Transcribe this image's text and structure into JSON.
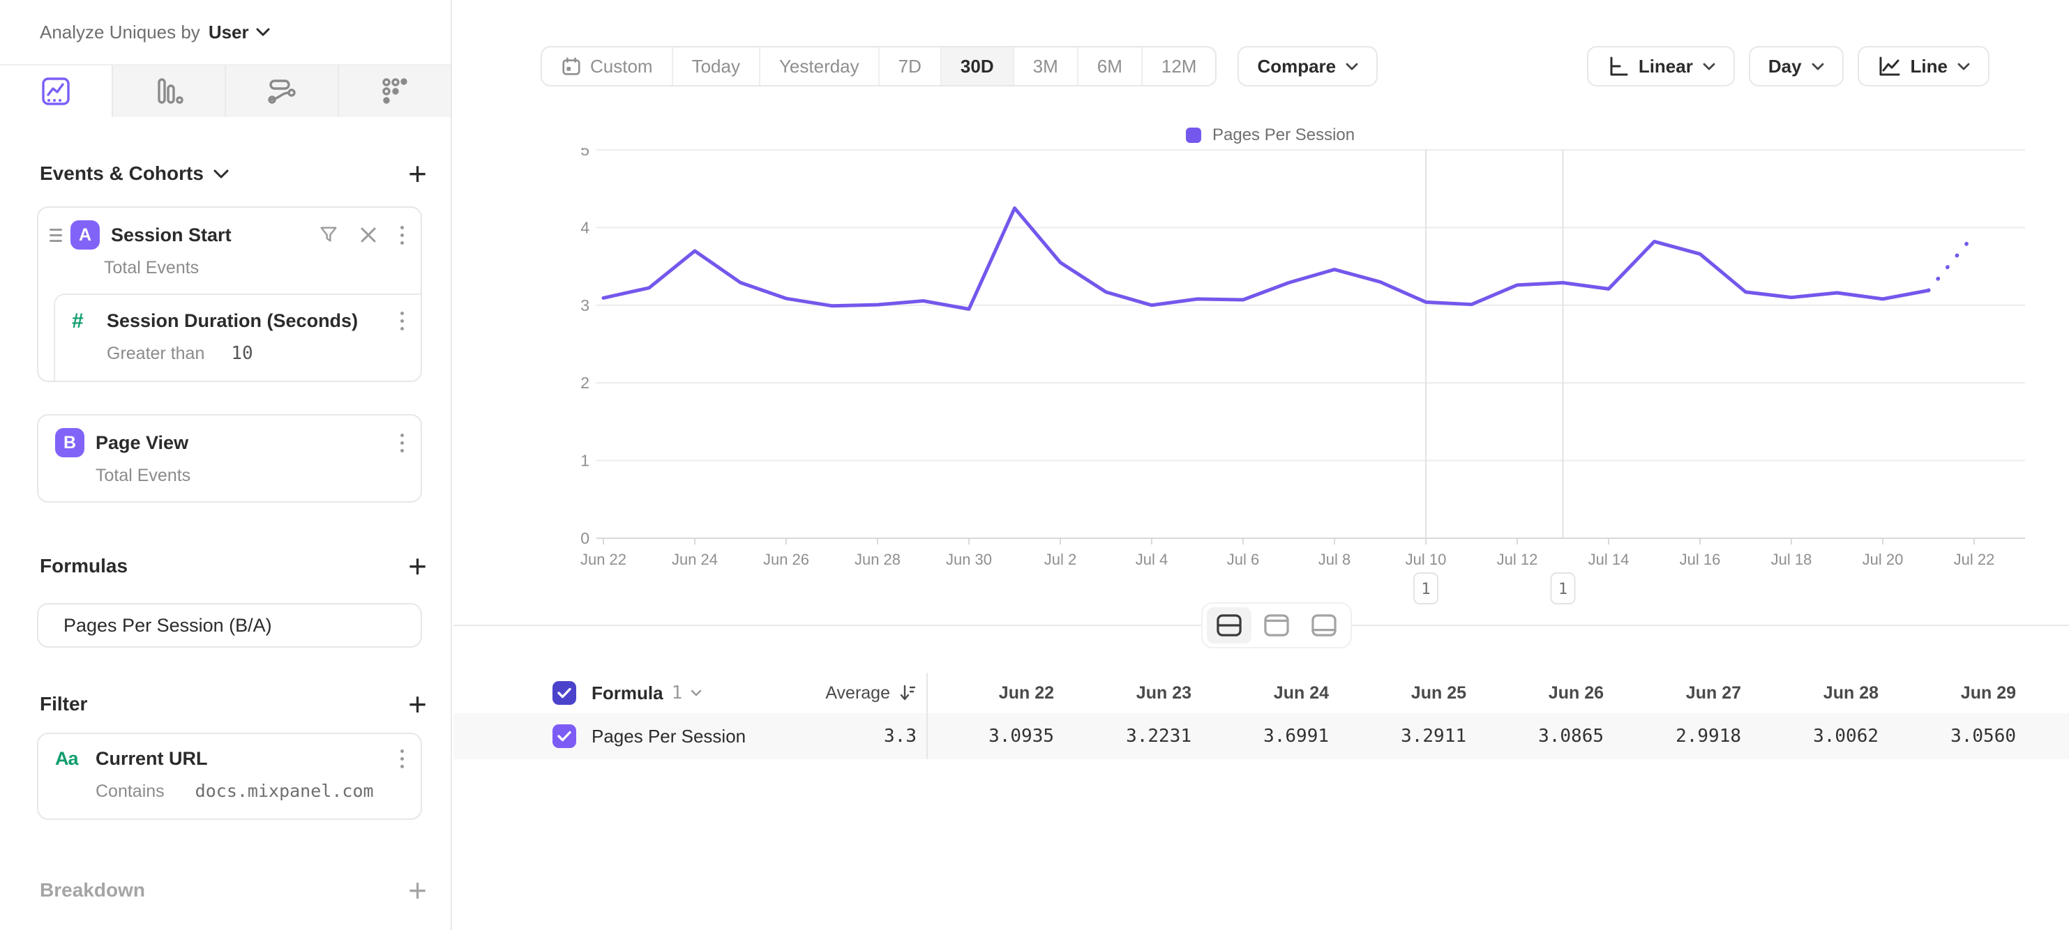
{
  "analyze_bar": {
    "label": "Analyze Uniques by",
    "value": "User"
  },
  "sidebar": {
    "tabs": [
      {
        "icon": "insights-chart-icon",
        "active": true
      },
      {
        "icon": "bar-chart-icon",
        "active": false
      },
      {
        "icon": "flows-icon",
        "active": false
      },
      {
        "icon": "funnel-dots-icon",
        "active": false
      }
    ],
    "sections": {
      "events": {
        "title": "Events & Cohorts",
        "add": "+"
      },
      "formulas": {
        "title": "Formulas",
        "add": "+"
      },
      "filter": {
        "title": "Filter",
        "add": "+"
      },
      "breakdown": {
        "title": "Breakdown",
        "add": "+"
      }
    },
    "event_card": {
      "badge": "A",
      "title": "Session Start",
      "metric": "Total Events",
      "nested": {
        "icon_glyph": "#",
        "title": "Session Duration (Seconds)",
        "operator": "Greater than",
        "value": "10"
      }
    },
    "pageview_card": {
      "badge": "B",
      "title": "Page View",
      "metric": "Total Events"
    },
    "formula_card": {
      "title": "Pages Per Session (B/A)"
    },
    "filter_card": {
      "icon_label": "Aa",
      "title": "Current URL",
      "operator": "Contains",
      "value": "docs.mixpanel.com"
    }
  },
  "toolbar": {
    "date_ranges": [
      "Custom",
      "Today",
      "Yesterday",
      "7D",
      "30D",
      "3M",
      "6M",
      "12M"
    ],
    "active_range": "30D",
    "compare": "Compare",
    "scale": "Linear",
    "interval": "Day",
    "chart_type": "Line"
  },
  "legend": {
    "label": "Pages Per Session"
  },
  "chart_data": {
    "type": "line",
    "title": "",
    "x": [
      "Jun 22",
      "Jun 23",
      "Jun 24",
      "Jun 25",
      "Jun 26",
      "Jun 27",
      "Jun 28",
      "Jun 29",
      "Jun 30",
      "Jul 1",
      "Jul 2",
      "Jul 3",
      "Jul 4",
      "Jul 5",
      "Jul 6",
      "Jul 7",
      "Jul 8",
      "Jul 9",
      "Jul 10",
      "Jul 11",
      "Jul 12",
      "Jul 13",
      "Jul 14",
      "Jul 15",
      "Jul 16",
      "Jul 17",
      "Jul 18",
      "Jul 19",
      "Jul 20",
      "Jul 21",
      "Jul 22"
    ],
    "x_tick_indices": [
      0,
      2,
      4,
      6,
      8,
      10,
      12,
      14,
      16,
      18,
      20,
      22,
      24,
      26,
      28,
      30
    ],
    "series": [
      {
        "name": "Pages Per Session",
        "values": [
          3.0935,
          3.2231,
          3.6991,
          3.2911,
          3.0865,
          2.9918,
          3.0062,
          3.056,
          2.95,
          4.25,
          3.55,
          3.17,
          3.0,
          3.08,
          3.07,
          3.29,
          3.46,
          3.3,
          3.04,
          3.01,
          3.26,
          3.29,
          3.21,
          3.82,
          3.66,
          3.17,
          3.1,
          3.16,
          3.08,
          3.19,
          3.91
        ]
      }
    ],
    "dashed_tail_points": 1,
    "ylim": [
      0,
      5
    ],
    "yticks": [
      0,
      1,
      2,
      3,
      4,
      5
    ],
    "grid": "horizontal",
    "legend_position": "top-center",
    "annotations": [
      {
        "label": "1",
        "x_index": 18
      },
      {
        "label": "1",
        "x_index": 21
      }
    ]
  },
  "view_toggles": [
    {
      "icon": "split-view-icon",
      "active": true
    },
    {
      "icon": "chart-view-icon",
      "active": false
    },
    {
      "icon": "table-view-icon",
      "active": false
    }
  ],
  "table": {
    "group": {
      "label": "Formula",
      "number": "1"
    },
    "average_header": "Average",
    "date_columns": [
      "Jun 22",
      "Jun 23",
      "Jun 24",
      "Jun 25",
      "Jun 26",
      "Jun 27",
      "Jun 28",
      "Jun 29"
    ],
    "rows": [
      {
        "name": "Pages Per Session",
        "average": "3.3",
        "values": [
          "3.0935",
          "3.2231",
          "3.6991",
          "3.2911",
          "3.0865",
          "2.9918",
          "3.0062",
          "3.0560"
        ]
      }
    ]
  },
  "colors": {
    "accent": "#7457ec",
    "badge": "#8263f7",
    "checkbox_header": "#4b43cc",
    "checkbox_row": "#7d5cf5",
    "green": "#0f9d6e",
    "grid": "#ececec",
    "axis": "#d9d9d9",
    "annotation_line": "#e2e2e2"
  }
}
